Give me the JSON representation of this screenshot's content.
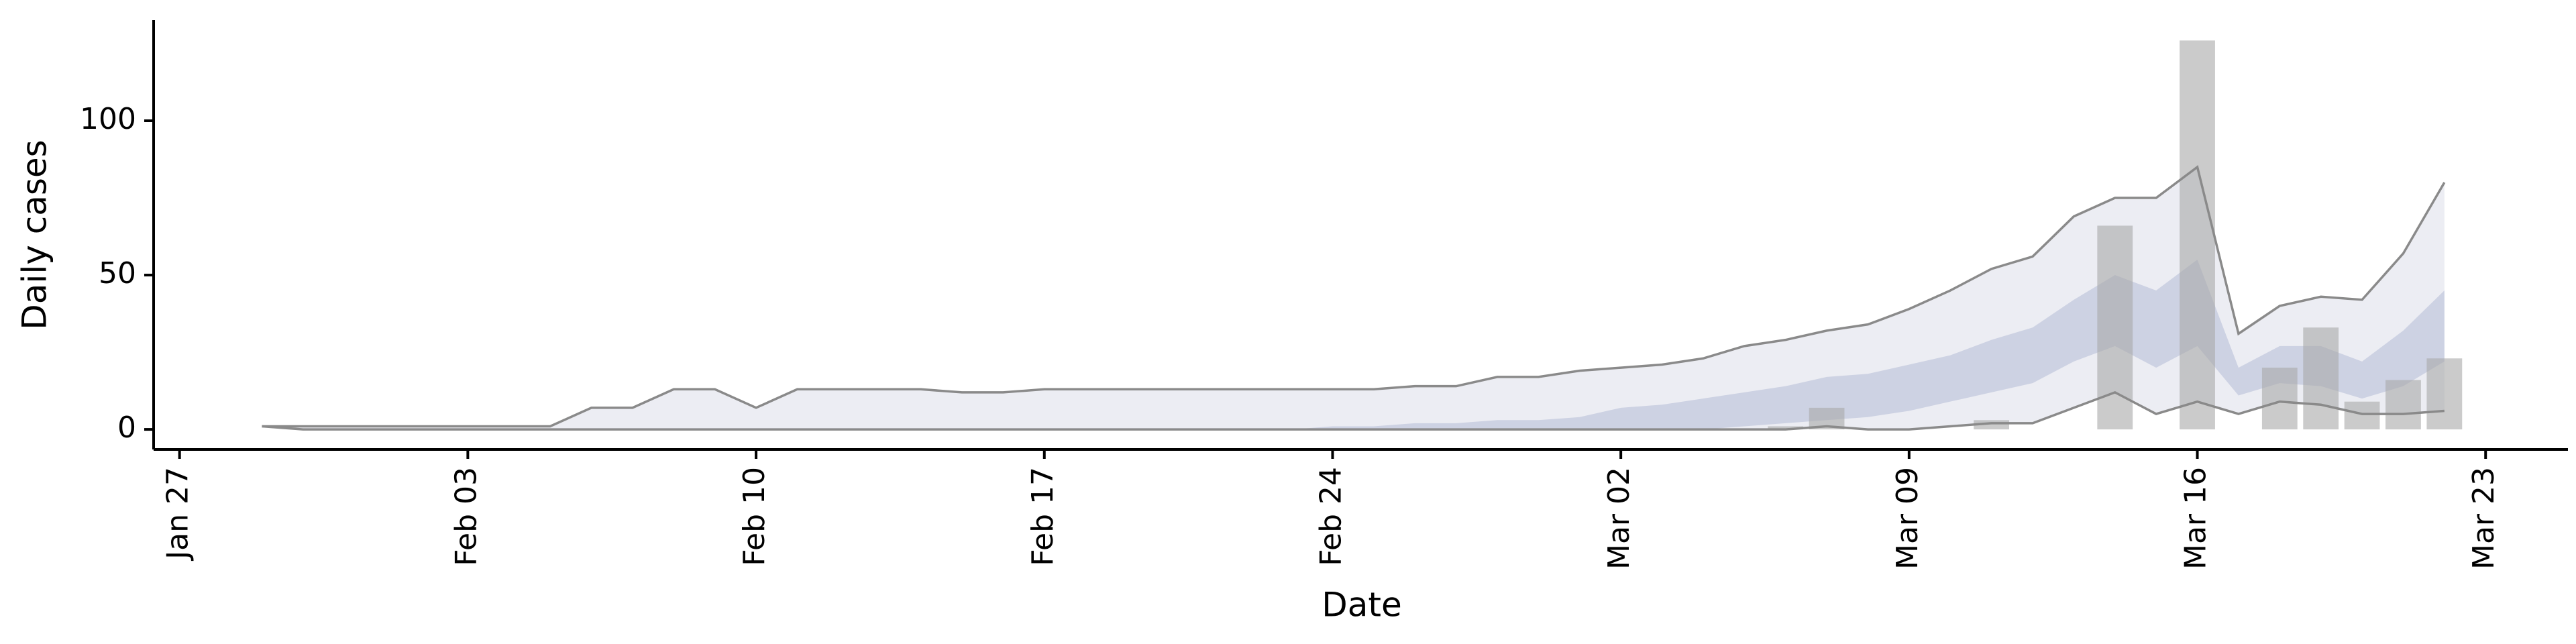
{
  "chart_data": {
    "type": "bar",
    "x_label": "Date",
    "y_label": "Daily cases",
    "x": [
      "01-29",
      "01-30",
      "01-31",
      "02-01",
      "02-02",
      "02-03",
      "02-04",
      "02-05",
      "02-06",
      "02-07",
      "02-08",
      "02-09",
      "02-10",
      "02-11",
      "02-12",
      "02-13",
      "02-14",
      "02-15",
      "02-16",
      "02-17",
      "02-18",
      "02-19",
      "02-20",
      "02-21",
      "02-22",
      "02-23",
      "02-24",
      "02-25",
      "02-26",
      "02-27",
      "02-28",
      "02-29",
      "03-01",
      "03-02",
      "03-03",
      "03-04",
      "03-05",
      "03-06",
      "03-07",
      "03-08",
      "03-09",
      "03-10",
      "03-11",
      "03-12",
      "03-13",
      "03-14",
      "03-15",
      "03-16",
      "03-17",
      "03-18",
      "03-19",
      "03-20",
      "03-21",
      "03-22"
    ],
    "values": [
      0,
      0,
      0,
      0,
      0,
      0,
      0,
      0,
      0,
      0,
      0,
      0,
      0,
      0,
      0,
      0,
      0,
      0,
      0,
      0,
      0,
      0,
      0,
      0,
      0,
      0,
      0,
      0,
      0,
      0,
      0,
      0,
      0,
      0,
      0,
      0,
      0,
      1,
      7,
      0,
      0,
      0,
      3,
      0,
      0,
      66,
      0,
      126,
      0,
      20,
      33,
      9,
      16,
      23
    ],
    "color": "#a8a8a8",
    "bands": [
      {
        "color": "#e9eaf1",
        "lower": [
          1,
          0,
          0,
          0,
          0,
          0,
          0,
          0,
          0,
          0,
          0,
          0,
          0,
          0,
          0,
          0,
          0,
          0,
          0,
          0,
          0,
          0,
          0,
          0,
          0,
          0,
          0,
          0,
          0,
          0,
          0,
          0,
          0,
          0,
          0,
          0,
          0,
          0,
          1,
          0,
          0,
          1,
          2,
          2,
          7,
          12,
          5,
          9,
          5,
          9,
          8,
          5,
          5,
          6
        ],
        "upper": [
          1,
          1,
          1,
          1,
          1,
          1,
          1,
          1,
          7,
          7,
          13,
          13,
          7,
          13,
          13,
          13,
          13,
          12,
          12,
          13,
          13,
          13,
          13,
          13,
          13,
          13,
          13,
          13,
          14,
          14,
          17,
          17,
          19,
          20,
          21,
          23,
          27,
          29,
          32,
          34,
          39,
          45,
          52,
          56,
          69,
          75,
          75,
          85,
          31,
          40,
          43,
          42,
          57,
          80
        ]
      },
      {
        "color": "#c8cddf",
        "lower": [
          0,
          0,
          0,
          0,
          0,
          0,
          0,
          0,
          0,
          0,
          0,
          0,
          0,
          0,
          0,
          0,
          0,
          0,
          0,
          0,
          0,
          0,
          0,
          0,
          0,
          0,
          0,
          0,
          0,
          0,
          0,
          0,
          0,
          0,
          0,
          0,
          1,
          2,
          3,
          4,
          6,
          9,
          12,
          15,
          22,
          27,
          20,
          27,
          11,
          15,
          14,
          10,
          14,
          22
        ],
        "upper": [
          0,
          0,
          0,
          0,
          0,
          0,
          0,
          0,
          0,
          0,
          0,
          0,
          0,
          0,
          0,
          0,
          0,
          0,
          0,
          0,
          0,
          0,
          0,
          0,
          0,
          0,
          1,
          1,
          2,
          2,
          3,
          3,
          4,
          7,
          8,
          10,
          12,
          14,
          17,
          18,
          21,
          24,
          29,
          33,
          42,
          50,
          45,
          55,
          20,
          27,
          27,
          22,
          32,
          45
        ]
      }
    ],
    "line_color": "#8a8a8a",
    "ylim": [
      -6.5,
      132.6
    ],
    "yticks": [
      0,
      50,
      100
    ],
    "xticks": [
      {
        "value": "01-27",
        "label": "Jan 27"
      },
      {
        "value": "02-03",
        "label": "Feb 03"
      },
      {
        "value": "02-10",
        "label": "Feb 10"
      },
      {
        "value": "02-17",
        "label": "Feb 17"
      },
      {
        "value": "02-24",
        "label": "Feb 24"
      },
      {
        "value": "03-02",
        "label": "Mar 02"
      },
      {
        "value": "03-09",
        "label": "Mar 09"
      },
      {
        "value": "03-16",
        "label": "Mar 16"
      },
      {
        "value": "03-23",
        "label": "Mar 23"
      }
    ]
  }
}
